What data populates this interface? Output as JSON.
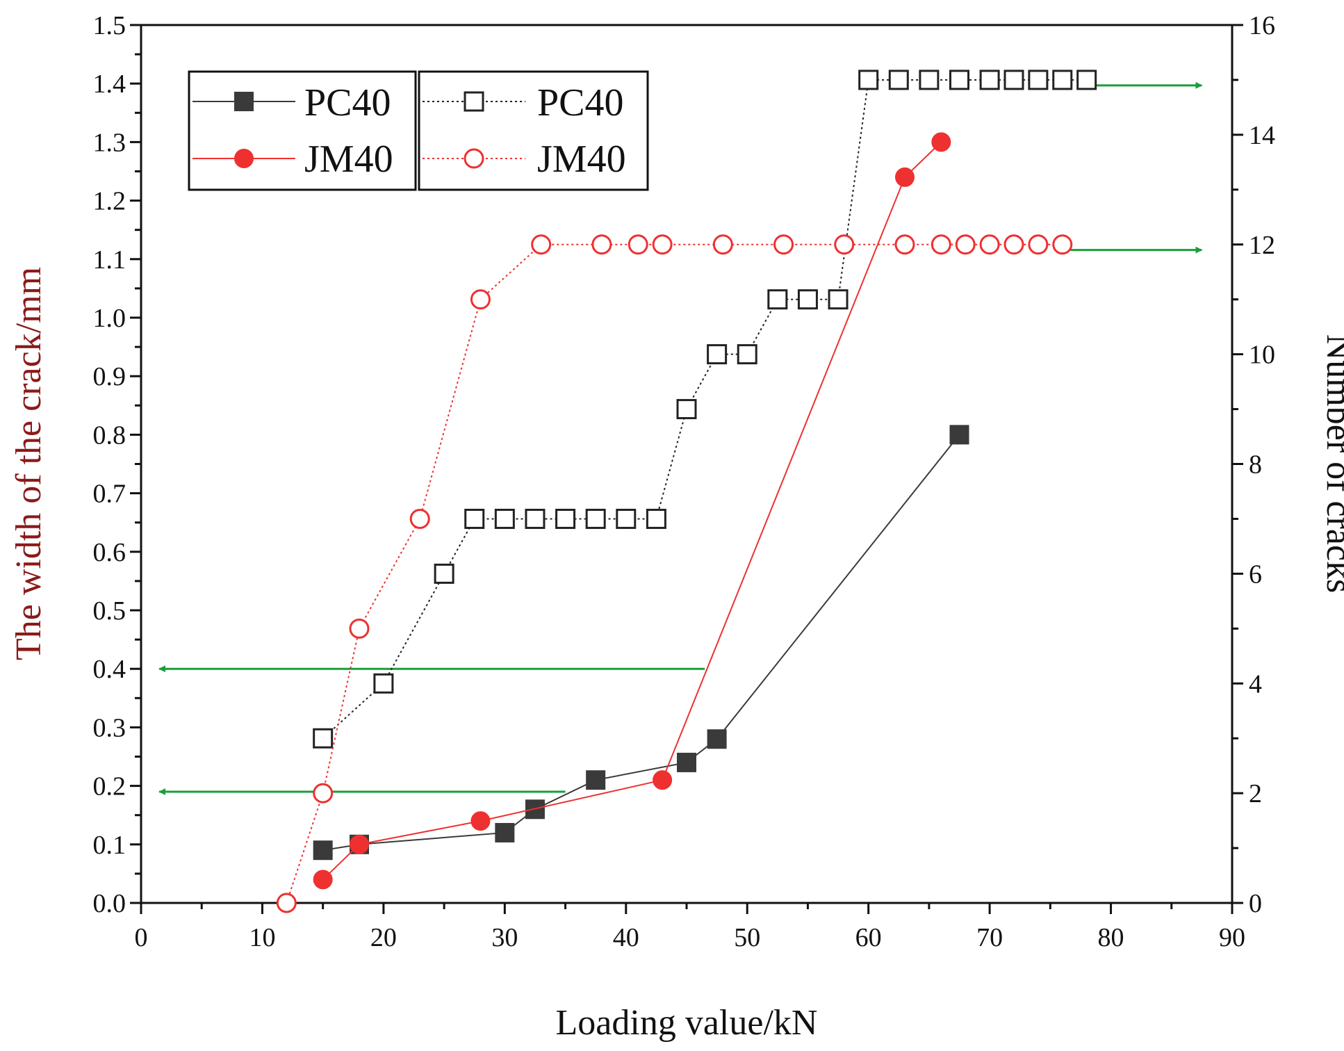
{
  "chart_data": {
    "type": "line",
    "title": "",
    "xlabel": "Loading value/kN",
    "ylabel": "The width of the crack/mm",
    "y2label": "Number of cracks",
    "xlim": [
      0,
      90
    ],
    "ylim": [
      0,
      1.5
    ],
    "y2lim": [
      0,
      16
    ],
    "x_ticks": [
      "0",
      "10",
      "20",
      "30",
      "40",
      "50",
      "60",
      "70",
      "80",
      "90"
    ],
    "y_ticks": [
      "0.0",
      "0.1",
      "0.2",
      "0.3",
      "0.4",
      "0.5",
      "0.6",
      "0.7",
      "0.8",
      "0.9",
      "1.0",
      "1.1",
      "1.2",
      "1.3",
      "1.4",
      "1.5"
    ],
    "y2_ticks": [
      "0",
      "2",
      "4",
      "6",
      "8",
      "10",
      "12",
      "14",
      "16"
    ],
    "legend": [
      {
        "series": "PC40 width",
        "label": "PC40"
      },
      {
        "series": "JM40 width",
        "label": "JM40"
      },
      {
        "series": "PC40 cracks",
        "label": "PC40"
      },
      {
        "series": "JM40 cracks",
        "label": "JM40"
      }
    ],
    "series": [
      {
        "name": "PC40 width",
        "axis": "left",
        "color": "#3a3a3a",
        "marker": "square-filled",
        "line": "solid",
        "x": [
          15,
          18,
          30,
          32.5,
          37.5,
          45,
          47.5,
          67.5
        ],
        "y": [
          0.09,
          0.1,
          0.12,
          0.16,
          0.21,
          0.24,
          0.28,
          0.8
        ]
      },
      {
        "name": "JM40 width",
        "axis": "left",
        "color": "#ee3030",
        "marker": "circle-filled",
        "line": "solid",
        "x": [
          15,
          18,
          28,
          43,
          63,
          66
        ],
        "y": [
          0.04,
          0.1,
          0.14,
          0.21,
          1.24,
          1.3
        ]
      },
      {
        "name": "PC40 cracks",
        "axis": "right",
        "color": "#222222",
        "marker": "square-open",
        "line": "dotted",
        "x": [
          15,
          20,
          25,
          27.5,
          30,
          32.5,
          35,
          37.5,
          40,
          42.5,
          45,
          47.5,
          50,
          52.5,
          55,
          57.5,
          60,
          62.5,
          65,
          67.5,
          70,
          72,
          74,
          76,
          78
        ],
        "y": [
          3,
          4,
          6,
          7,
          7,
          7,
          7,
          7,
          7,
          7,
          9,
          10,
          10,
          11,
          11,
          11,
          15,
          15,
          15,
          15,
          15,
          15,
          15,
          15,
          15
        ]
      },
      {
        "name": "JM40 cracks",
        "axis": "right",
        "color": "#ee3030",
        "marker": "circle-open",
        "line": "dotted",
        "x": [
          12,
          15,
          18,
          23,
          28,
          33,
          38,
          41,
          43,
          48,
          53,
          58,
          63,
          66,
          68,
          70,
          72,
          74,
          76
        ],
        "y": [
          0,
          2,
          5,
          7,
          11,
          12,
          12,
          12,
          12,
          12,
          12,
          12,
          12,
          12,
          12,
          12,
          12,
          12,
          12
        ]
      }
    ],
    "annotations": [
      {
        "type": "arrow",
        "color": "#1a9e3a",
        "axis": "left",
        "from": [
          46.5,
          0.4
        ],
        "to": [
          1.5,
          0.4
        ]
      },
      {
        "type": "arrow",
        "color": "#1a9e3a",
        "axis": "left",
        "from": [
          35,
          0.19
        ],
        "to": [
          1.5,
          0.19
        ]
      },
      {
        "type": "arrow",
        "color": "#1a9e3a",
        "axis": "right",
        "from": [
          78,
          14.9
        ],
        "to": [
          87.5,
          14.9
        ]
      },
      {
        "type": "arrow",
        "color": "#1a9e3a",
        "axis": "right",
        "from": [
          76,
          11.9
        ],
        "to": [
          87.5,
          11.9
        ]
      }
    ],
    "colors": {
      "axis": "#111111",
      "left_axis_title": "#8b1a1a",
      "right_axis_title": "#111111"
    }
  }
}
